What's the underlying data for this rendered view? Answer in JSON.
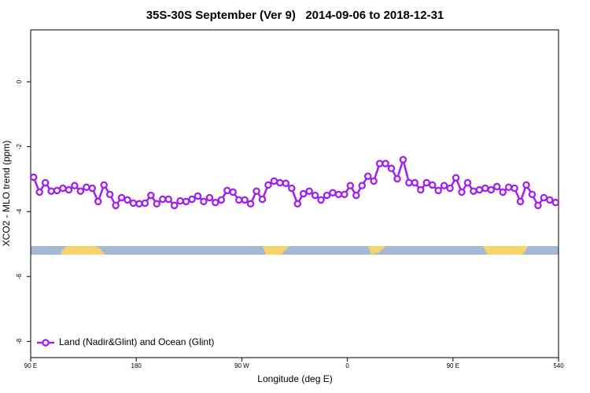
{
  "chart_data": {
    "type": "line",
    "title": "35S-30S September (Ver 9)   2014-09-06 to 2018-12-31",
    "xlabel": "Longitude (deg E)",
    "ylabel": "XCO2 - MLO trend (ppm)",
    "xlim": [
      90,
      540
    ],
    "ylim": [
      -8.5,
      1.6
    ],
    "xticks": [
      {
        "value": 90,
        "label": "90 E"
      },
      180,
      {
        "value": 270,
        "label": "90 W"
      },
      {
        "value": 360,
        "label": "0"
      },
      {
        "value": 450,
        "label": "90 E"
      },
      540
    ],
    "yticks": [
      0,
      -2,
      -4,
      -6,
      -8
    ],
    "legend": "bottom-left",
    "x": [
      92.5,
      97.5,
      102.5,
      107.5,
      112.5,
      117.5,
      122.5,
      127.5,
      132.5,
      137.5,
      142.5,
      147.5,
      152.5,
      157.5,
      162.5,
      167.5,
      172.5,
      177.5,
      182.5,
      187.5,
      192.5,
      197.5,
      202.5,
      207.5,
      212.5,
      217.5,
      222.5,
      227.5,
      232.5,
      237.5,
      242.5,
      247.5,
      252.5,
      257.5,
      262.5,
      267.5,
      272.5,
      277.5,
      282.5,
      287.5,
      292.5,
      297.5,
      302.5,
      307.5,
      312.5,
      317.5,
      322.5,
      327.5,
      332.5,
      337.5,
      342.5,
      347.5,
      352.5,
      357.5,
      362.5,
      367.5,
      372.5,
      377.5,
      382.5,
      387.5,
      392.5,
      397.5,
      402.5,
      407.5,
      412.5,
      417.5,
      422.5,
      427.5,
      432.5,
      437.5,
      442.5,
      447.5,
      452.5,
      457.5,
      462.5,
      467.5,
      472.5,
      477.5,
      482.5,
      487.5,
      492.5,
      497.5,
      502.5,
      507.5,
      512.5,
      517.5,
      522.5,
      527.5,
      532.5,
      537.5
    ],
    "series": [
      {
        "name": "Land (Nadir&Glint) and Ocean (Glint)",
        "color": "#a020f0",
        "values": [
          -2.94,
          -3.4,
          -3.11,
          -3.37,
          -3.35,
          -3.28,
          -3.33,
          -3.2,
          -3.37,
          -3.25,
          -3.28,
          -3.69,
          -3.18,
          -3.47,
          -3.81,
          -3.57,
          -3.64,
          -3.74,
          -3.76,
          -3.74,
          -3.5,
          -3.76,
          -3.62,
          -3.62,
          -3.81,
          -3.67,
          -3.69,
          -3.62,
          -3.52,
          -3.69,
          -3.57,
          -3.72,
          -3.64,
          -3.35,
          -3.4,
          -3.64,
          -3.64,
          -3.76,
          -3.37,
          -3.62,
          -3.18,
          -3.06,
          -3.11,
          -3.13,
          -3.28,
          -3.76,
          -3.45,
          -3.37,
          -3.5,
          -3.64,
          -3.5,
          -3.42,
          -3.47,
          -3.47,
          -3.2,
          -3.5,
          -3.2,
          -2.91,
          -3.06,
          -2.52,
          -2.52,
          -2.67,
          -2.99,
          -2.4,
          -3.11,
          -3.11,
          -3.33,
          -3.11,
          -3.18,
          -3.35,
          -3.2,
          -3.28,
          -2.96,
          -3.4,
          -3.11,
          -3.37,
          -3.33,
          -3.28,
          -3.33,
          -3.23,
          -3.4,
          -3.25,
          -3.28,
          -3.69,
          -3.18,
          -3.47,
          -3.81,
          -3.57,
          -3.64,
          -3.72
        ]
      }
    ]
  }
}
